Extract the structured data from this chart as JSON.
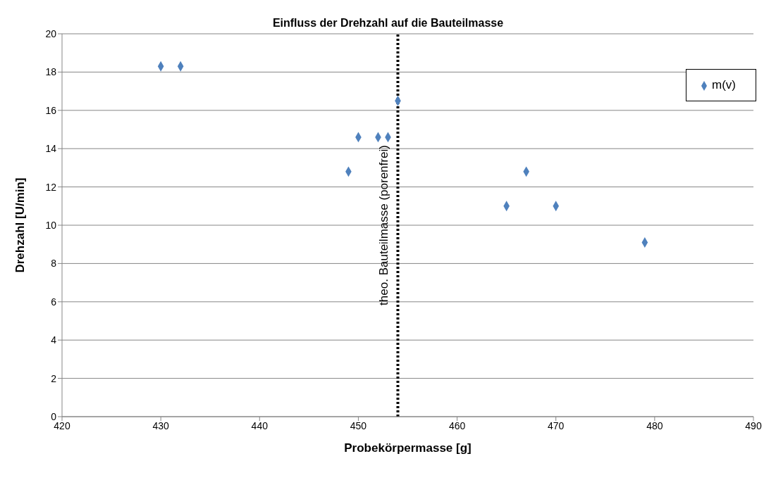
{
  "chart_data": {
    "type": "scatter",
    "title": "Einfluss der Drehzahl auf die Bauteilmasse",
    "xlabel": "Probekörpermasse [g]",
    "ylabel": "Drehzahl [U/min]",
    "x": [
      430,
      432,
      449,
      450,
      452,
      453,
      454,
      465,
      467,
      470,
      479
    ],
    "series": [
      {
        "name": "m(v)",
        "color": "#4f81bd",
        "values": [
          18.3,
          18.3,
          12.8,
          14.6,
          14.6,
          14.6,
          16.5,
          11.0,
          12.8,
          11.0,
          9.1
        ]
      }
    ],
    "xlim": [
      420,
      490
    ],
    "xticks": [
      420,
      430,
      440,
      450,
      460,
      470,
      480,
      490
    ],
    "ylim": [
      0,
      20
    ],
    "yticks": [
      0,
      2,
      4,
      6,
      8,
      10,
      12,
      14,
      16,
      18,
      20
    ],
    "grid": "y",
    "legend": "top right",
    "marker": "diamond",
    "ref_lines": [
      {
        "axis": "x",
        "value": 454,
        "label": "theo. Bauteilmasse (porenfrei)",
        "color": "#000000",
        "line_style": "dotted"
      }
    ]
  }
}
